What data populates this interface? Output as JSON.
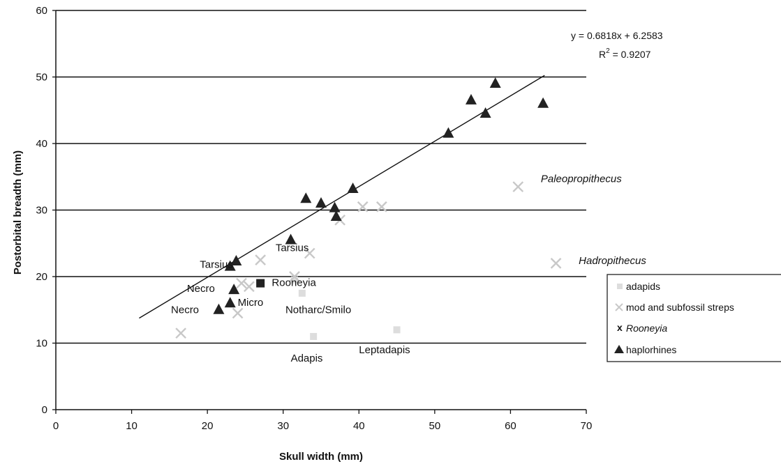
{
  "chart_data": {
    "type": "scatter",
    "xlabel": "Skull width (mm)",
    "ylabel": "Postorbital breadth (mm)",
    "xlim": [
      0,
      70
    ],
    "ylim": [
      0,
      60
    ],
    "xticks": [
      0,
      10,
      20,
      30,
      40,
      50,
      60,
      70
    ],
    "yticks": [
      0,
      10,
      20,
      30,
      40,
      50,
      60
    ],
    "grid": "horizontal",
    "legend_position": "right",
    "series": [
      {
        "name": "adapids",
        "marker": "square",
        "color": "#dddddd",
        "points": [
          {
            "x": 31.5,
            "y": 19.5
          },
          {
            "x": 32.5,
            "y": 17.5
          },
          {
            "x": 34.0,
            "y": 11.0
          },
          {
            "x": 45.0,
            "y": 12.0
          }
        ]
      },
      {
        "name": "mod and subfossil streps",
        "marker": "x",
        "color": "#c8c8c8",
        "points": [
          {
            "x": 16.5,
            "y": 11.5
          },
          {
            "x": 24.0,
            "y": 14.5
          },
          {
            "x": 24.5,
            "y": 19.0
          },
          {
            "x": 25.5,
            "y": 18.5
          },
          {
            "x": 27.0,
            "y": 22.5
          },
          {
            "x": 31.5,
            "y": 20.0
          },
          {
            "x": 33.5,
            "y": 23.5
          },
          {
            "x": 37.5,
            "y": 28.5
          },
          {
            "x": 40.5,
            "y": 30.5
          },
          {
            "x": 43.0,
            "y": 30.5
          },
          {
            "x": 61.0,
            "y": 33.5
          },
          {
            "x": 66.0,
            "y": 22.0
          }
        ]
      },
      {
        "name": "Rooneyia",
        "marker": "square",
        "color": "#222222",
        "points": [
          {
            "x": 27.0,
            "y": 19.0
          }
        ]
      },
      {
        "name": "haplorhines",
        "marker": "triangle",
        "color": "#222222",
        "points": [
          {
            "x": 21.5,
            "y": 15.0
          },
          {
            "x": 23.0,
            "y": 16.0
          },
          {
            "x": 23.5,
            "y": 18.0
          },
          {
            "x": 23.0,
            "y": 21.5
          },
          {
            "x": 23.8,
            "y": 22.3
          },
          {
            "x": 31.0,
            "y": 25.5
          },
          {
            "x": 33.0,
            "y": 31.7
          },
          {
            "x": 35.0,
            "y": 31.0
          },
          {
            "x": 36.8,
            "y": 30.3
          },
          {
            "x": 37.0,
            "y": 29.0
          },
          {
            "x": 39.2,
            "y": 33.2
          },
          {
            "x": 51.8,
            "y": 41.5
          },
          {
            "x": 54.8,
            "y": 46.5
          },
          {
            "x": 56.7,
            "y": 44.5
          },
          {
            "x": 58.0,
            "y": 49.0
          },
          {
            "x": 64.3,
            "y": 46.0
          }
        ]
      }
    ],
    "trendline": {
      "slope": 0.6818,
      "intercept": 6.2583,
      "x_range": [
        11,
        64.5
      ]
    },
    "equation_lines": [
      "y = 0.6818x + 6.2583",
      "R",
      "2",
      " = 0.9207"
    ],
    "annotations": [
      {
        "text": "Tarsius",
        "x": 29.0,
        "y": 23.8,
        "style": "normal"
      },
      {
        "text": "Tarsius",
        "x": 19.0,
        "y": 21.3,
        "style": "normal"
      },
      {
        "text": "Rooneyia",
        "x": 28.5,
        "y": 18.6,
        "style": "normal"
      },
      {
        "text": "Necro",
        "x": 17.3,
        "y": 17.7,
        "style": "normal"
      },
      {
        "text": "Necro",
        "x": 15.2,
        "y": 14.5,
        "style": "normal"
      },
      {
        "text": "Micro",
        "x": 24.0,
        "y": 15.6,
        "style": "normal"
      },
      {
        "text": "Notharc/Smilo",
        "x": 30.3,
        "y": 14.5,
        "style": "normal"
      },
      {
        "text": "Adapis",
        "x": 31.0,
        "y": 7.2,
        "style": "normal"
      },
      {
        "text": "Leptadapis",
        "x": 40.0,
        "y": 8.5,
        "style": "normal"
      },
      {
        "text": "Paleopropithecus",
        "x": 64.0,
        "y": 34.2,
        "style": "italic"
      },
      {
        "text": "Hadropithecus",
        "x": 69.0,
        "y": 21.9,
        "style": "italic"
      }
    ]
  }
}
